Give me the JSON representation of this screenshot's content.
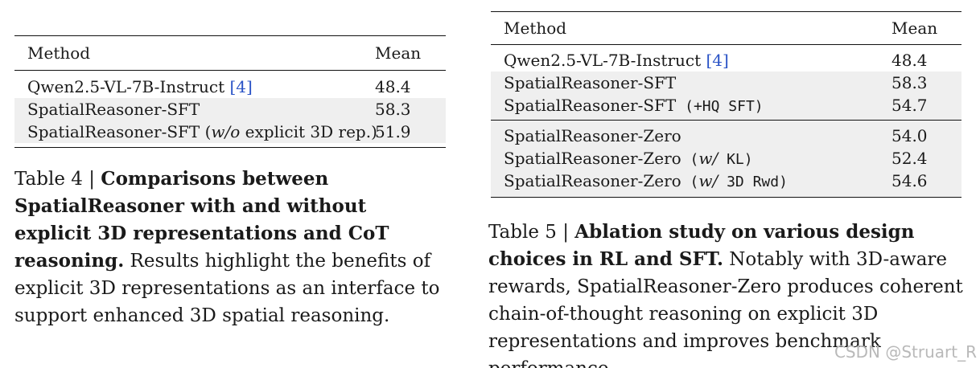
{
  "table4": {
    "header": {
      "method": "Method",
      "mean": "Mean"
    },
    "rows": [
      {
        "method": "Qwen2.5-VL-7B-Instruct",
        "cite": "[4]",
        "mean": "48.4"
      },
      {
        "method": "SpatialReasoner-SFT",
        "mean": "58.3"
      },
      {
        "method_prefix": "SpatialReasoner-SFT (",
        "method_italic": "w/o",
        "method_suffix": " explicit 3D rep.)",
        "mean": "51.9"
      }
    ],
    "caption": {
      "label": "Table 4 | ",
      "bold": "Comparisons between SpatialReasoner with and without explicit 3D representations and CoT reasoning.",
      "text": " Results highlight the benefits of explicit 3D representations as an interface to support enhanced 3D spatial reasoning."
    }
  },
  "table5": {
    "header": {
      "method": "Method",
      "mean": "Mean"
    },
    "group1": [
      {
        "method": "Qwen2.5-VL-7B-Instruct",
        "cite": "[4]",
        "mean": "48.4"
      },
      {
        "method": "SpatialReasoner-SFT",
        "mean": "58.3"
      },
      {
        "method": "SpatialReasoner-SFT",
        "mono": " (+HQ SFT)",
        "mean": "54.7"
      }
    ],
    "group2": [
      {
        "method": "SpatialReasoner-Zero",
        "mean": "54.0"
      },
      {
        "method": "SpatialReasoner-Zero",
        "mono_prefix": " (",
        "italic": "w/",
        "mono_suffix": " KL)",
        "mean": "52.4"
      },
      {
        "method": "SpatialReasoner-Zero",
        "mono_prefix": " (",
        "italic": "w/",
        "mono_suffix": " 3D Rwd)",
        "mean": "54.6"
      }
    ],
    "caption": {
      "label": "Table 5 | ",
      "bold": "Ablation study on various design choices in RL and SFT.",
      "text": " Notably with 3D-aware rewards, SpatialReasoner-Zero produces coherent chain-of-thought reasoning on explicit 3D representations and improves benchmark performance."
    }
  },
  "watermark": "CSDN @Struart_R"
}
